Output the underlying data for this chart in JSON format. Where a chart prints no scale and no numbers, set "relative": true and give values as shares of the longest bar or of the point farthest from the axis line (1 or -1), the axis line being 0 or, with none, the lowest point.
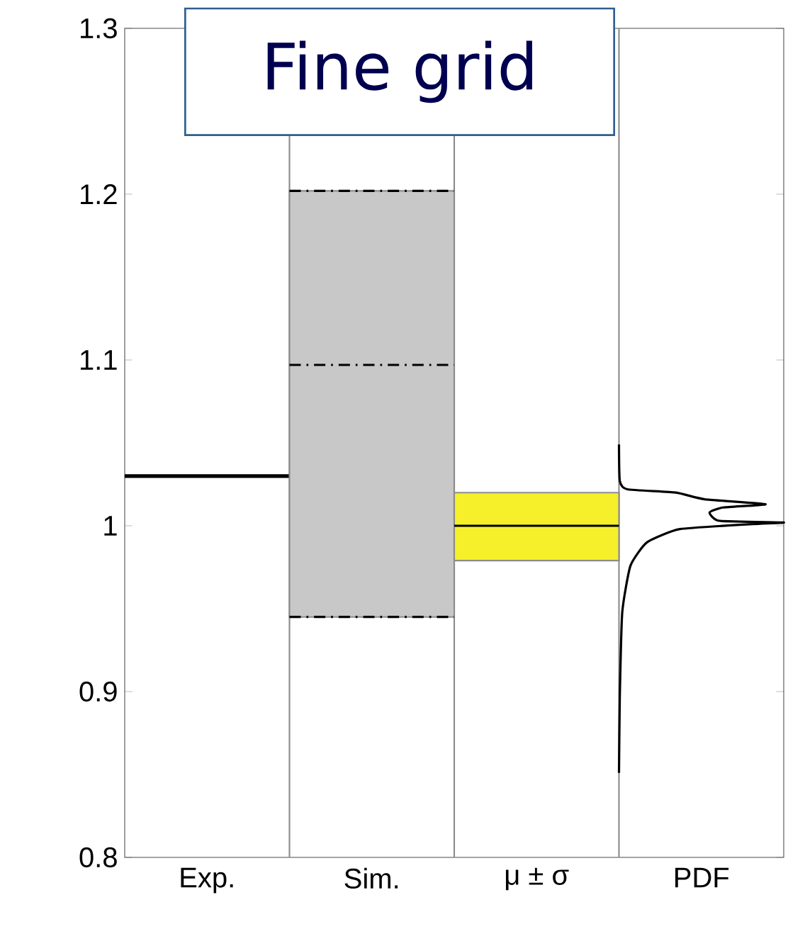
{
  "chart_data": [
    {
      "type": "box",
      "title": "Fine grid",
      "categories": [
        "Exp.",
        "Sim.",
        "μ ± σ",
        "PDF"
      ],
      "ylim": [
        0.8,
        1.3
      ],
      "yticks": [
        0.8,
        0.9,
        1,
        1.1,
        1.2,
        1.3
      ],
      "series": [
        {
          "color": "#000000",
          "boxes": [
            {
              "low": 1.03,
              "q1": 1.03,
              "median": 1.03,
              "q3": 1.03,
              "high": 1.03
            },
            null,
            null,
            null
          ]
        },
        {
          "color": "#c8c8c8",
          "line_style": "dashed",
          "boxes": [
            null,
            {
              "low": 0.945,
              "q1": 0.945,
              "median": 1.097,
              "q3": 1.202,
              "high": 1.202
            },
            null,
            null
          ]
        },
        {
          "color": "#f5f02a",
          "boxes": [
            null,
            null,
            {
              "low": 0.979,
              "q1": 0.979,
              "median": 1.0,
              "q3": 1.02,
              "high": 1.02
            },
            null
          ]
        }
      ]
    },
    {
      "type": "line",
      "orientation": "horizontal",
      "relative": true,
      "ylim": [
        0.8,
        1.3
      ],
      "tick_labels": false,
      "series": [
        {
          "color": "#000000",
          "x": [
            0.851,
            0.897,
            0.948,
            0.976,
            0.99,
            0.998,
            1.001,
            1.002,
            1.003,
            1.008,
            1.011,
            1.013,
            1.016,
            1.02,
            1.022,
            1.027,
            1.049
          ],
          "values": [
            0,
            0.005,
            0.02,
            0.07,
            0.17,
            0.37,
            0.81,
            1.0,
            0.61,
            0.55,
            0.63,
            0.89,
            0.52,
            0.345,
            0.05,
            0.005,
            0
          ]
        }
      ]
    }
  ]
}
